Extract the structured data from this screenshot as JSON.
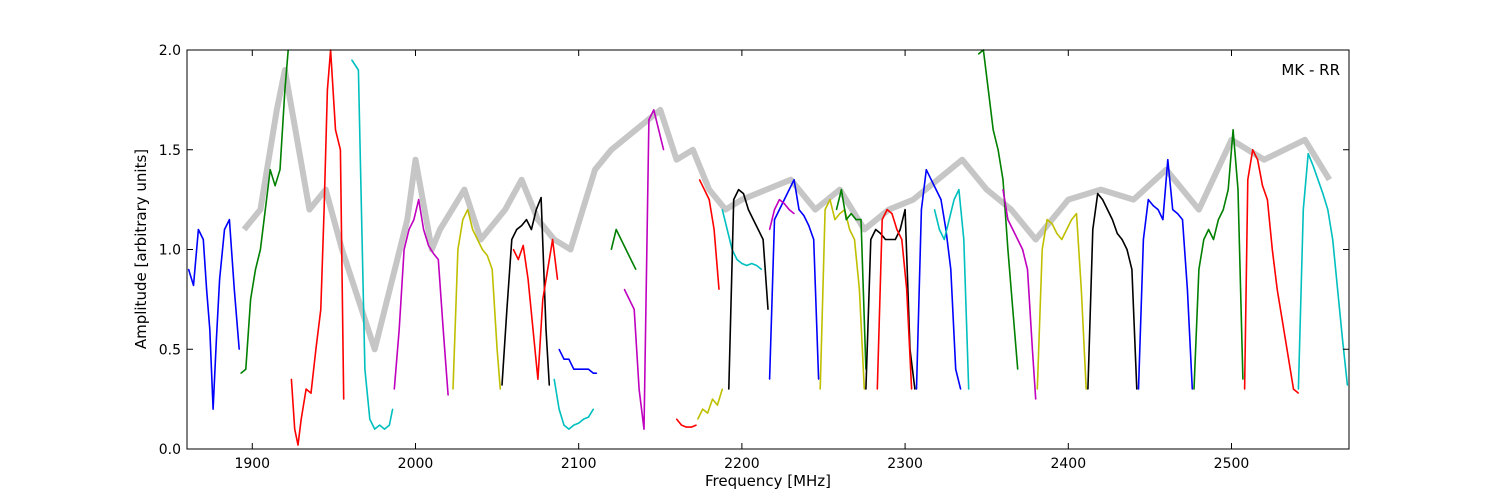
{
  "chart_data": {
    "type": "line",
    "xlabel": "Frequency [MHz]",
    "ylabel": "Amplitude [arbitrary units]",
    "annotation": "MK - RR",
    "xlim": [
      1860,
      2572
    ],
    "ylim": [
      0.0,
      2.0
    ],
    "xticks": [
      1900,
      2000,
      2100,
      2200,
      2300,
      2400,
      2500
    ],
    "yticks": [
      0.0,
      0.5,
      1.0,
      1.5,
      2.0
    ],
    "ytick_labels": [
      "0.0",
      "0.5",
      "1.0",
      "1.5",
      "2.0"
    ],
    "grid": false,
    "reference_color": "#c0c0c0",
    "series": [
      {
        "color": "#0000ff",
        "x": [
          1861,
          1864,
          1867,
          1870,
          1872,
          1874,
          1876,
          1878,
          1880,
          1883,
          1886,
          1889,
          1892
        ],
        "y": [
          0.9,
          0.82,
          1.1,
          1.05,
          0.8,
          0.6,
          0.2,
          0.55,
          0.85,
          1.1,
          1.15,
          0.8,
          0.5
        ]
      },
      {
        "color": "#008000",
        "x": [
          1893,
          1896,
          1899,
          1902,
          1905,
          1908,
          1911,
          1914,
          1917,
          1920,
          1922
        ],
        "y": [
          0.38,
          0.4,
          0.75,
          0.9,
          1.0,
          1.2,
          1.4,
          1.32,
          1.4,
          1.8,
          2.0
        ]
      },
      {
        "color": "#ff0000",
        "x": [
          1924,
          1926,
          1928,
          1930,
          1933,
          1936,
          1939,
          1942,
          1944,
          1946,
          1948,
          1951,
          1954,
          1956
        ],
        "y": [
          0.35,
          0.1,
          0.02,
          0.15,
          0.3,
          0.28,
          0.5,
          0.7,
          1.2,
          1.8,
          2.0,
          1.6,
          1.5,
          0.25
        ]
      },
      {
        "color": "#00bfbf",
        "x": [
          1961,
          1965,
          1969,
          1972,
          1975,
          1978,
          1981,
          1984,
          1986
        ],
        "y": [
          1.95,
          1.9,
          0.4,
          0.15,
          0.1,
          0.12,
          0.1,
          0.12,
          0.2
        ]
      },
      {
        "color": "#bf00bf",
        "x": [
          1987,
          1990,
          1993,
          1996,
          1999,
          2002,
          2005,
          2008,
          2011,
          2014,
          2017,
          2020
        ],
        "y": [
          0.3,
          0.6,
          1.0,
          1.1,
          1.15,
          1.25,
          1.1,
          1.02,
          0.98,
          0.95,
          0.6,
          0.27
        ]
      },
      {
        "color": "#bfbf00",
        "x": [
          2023,
          2026,
          2029,
          2032,
          2035,
          2038,
          2041,
          2044,
          2047,
          2050,
          2052
        ],
        "y": [
          0.3,
          1.0,
          1.15,
          1.2,
          1.1,
          1.05,
          1.0,
          0.97,
          0.9,
          0.5,
          0.3
        ]
      },
      {
        "color": "#000000",
        "x": [
          2053,
          2056,
          2059,
          2062,
          2065,
          2068,
          2071,
          2074,
          2077,
          2080,
          2082
        ],
        "y": [
          0.32,
          0.7,
          1.05,
          1.1,
          1.12,
          1.15,
          1.1,
          1.2,
          1.26,
          0.6,
          0.32
        ]
      },
      {
        "color": "#ff0000",
        "x": [
          2060,
          2063,
          2066,
          2069,
          2072,
          2075,
          2078,
          2081,
          2084,
          2087
        ],
        "y": [
          1.0,
          0.95,
          1.02,
          0.85,
          0.6,
          0.35,
          0.75,
          0.9,
          1.05,
          0.85
        ]
      },
      {
        "color": "#0000ff",
        "x": [
          2088,
          2091,
          2094,
          2097,
          2100,
          2103,
          2106,
          2109,
          2111
        ],
        "y": [
          0.5,
          0.45,
          0.45,
          0.4,
          0.4,
          0.4,
          0.4,
          0.38,
          0.38
        ]
      },
      {
        "color": "#00bfbf",
        "x": [
          2085,
          2088,
          2091,
          2094,
          2097,
          2100,
          2103,
          2106,
          2109
        ],
        "y": [
          0.35,
          0.2,
          0.12,
          0.1,
          0.12,
          0.13,
          0.15,
          0.16,
          0.2
        ]
      },
      {
        "color": "#008000",
        "x": [
          2120,
          2123,
          2126,
          2129,
          2132,
          2135
        ],
        "y": [
          1.0,
          1.1,
          1.05,
          1.0,
          0.95,
          0.9
        ]
      },
      {
        "color": "#bf00bf",
        "x": [
          2128,
          2131,
          2134,
          2137,
          2140,
          2143,
          2146,
          2149,
          2152
        ],
        "y": [
          0.8,
          0.75,
          0.7,
          0.3,
          0.1,
          1.65,
          1.7,
          1.6,
          1.5
        ]
      },
      {
        "color": "#ff0000",
        "x": [
          2160,
          2163,
          2166,
          2169,
          2172
        ],
        "y": [
          0.15,
          0.12,
          0.11,
          0.11,
          0.12
        ]
      },
      {
        "color": "#bfbf00",
        "x": [
          2173,
          2176,
          2179,
          2182,
          2185,
          2188
        ],
        "y": [
          0.15,
          0.2,
          0.18,
          0.25,
          0.22,
          0.3
        ]
      },
      {
        "color": "#ff0000",
        "x": [
          2174,
          2177,
          2180,
          2183,
          2186
        ],
        "y": [
          1.35,
          1.3,
          1.25,
          1.1,
          0.8
        ]
      },
      {
        "color": "#00bfbf",
        "x": [
          2188,
          2191,
          2194,
          2197,
          2200,
          2203,
          2206,
          2209,
          2212
        ],
        "y": [
          1.2,
          1.1,
          1.0,
          0.95,
          0.93,
          0.92,
          0.93,
          0.92,
          0.9
        ]
      },
      {
        "color": "#000000",
        "x": [
          2192,
          2195,
          2198,
          2201,
          2204,
          2207,
          2210,
          2213,
          2216
        ],
        "y": [
          0.3,
          1.25,
          1.3,
          1.28,
          1.2,
          1.15,
          1.1,
          1.05,
          0.7
        ]
      },
      {
        "color": "#0000ff",
        "x": [
          2217,
          2220,
          2223,
          2226,
          2229,
          2232,
          2235,
          2238,
          2241,
          2244,
          2247
        ],
        "y": [
          0.35,
          1.15,
          1.2,
          1.25,
          1.3,
          1.35,
          1.2,
          1.17,
          1.12,
          1.05,
          0.35
        ]
      },
      {
        "color": "#bf00bf",
        "x": [
          2217,
          2220,
          2223,
          2226,
          2229,
          2232
        ],
        "y": [
          1.1,
          1.2,
          1.25,
          1.23,
          1.2,
          1.18
        ]
      },
      {
        "color": "#bfbf00",
        "x": [
          2248,
          2251,
          2254,
          2257,
          2260,
          2263,
          2266,
          2269,
          2272,
          2275
        ],
        "y": [
          0.3,
          1.2,
          1.25,
          1.15,
          1.18,
          1.2,
          1.1,
          1.05,
          0.8,
          0.3
        ]
      },
      {
        "color": "#008000",
        "x": [
          2258,
          2261,
          2264,
          2267,
          2270,
          2273,
          2276
        ],
        "y": [
          1.2,
          1.3,
          1.15,
          1.18,
          1.15,
          1.15,
          0.4
        ]
      },
      {
        "color": "#000000",
        "x": [
          2276,
          2279,
          2282,
          2285,
          2288,
          2291,
          2294,
          2297,
          2300,
          2303,
          2306
        ],
        "y": [
          0.3,
          1.05,
          1.1,
          1.08,
          1.05,
          1.05,
          1.05,
          1.1,
          1.2,
          0.5,
          0.3
        ]
      },
      {
        "color": "#ff0000",
        "x": [
          2283,
          2286,
          2289,
          2292,
          2295,
          2298,
          2301,
          2304
        ],
        "y": [
          0.3,
          1.15,
          1.2,
          1.18,
          1.1,
          1.05,
          0.8,
          0.3
        ]
      },
      {
        "color": "#0000ff",
        "x": [
          2307,
          2310,
          2313,
          2316,
          2319,
          2322,
          2325,
          2328,
          2331,
          2334
        ],
        "y": [
          0.3,
          1.2,
          1.4,
          1.35,
          1.3,
          1.25,
          1.1,
          0.9,
          0.4,
          0.3
        ]
      },
      {
        "color": "#00bfbf",
        "x": [
          2318,
          2321,
          2324,
          2327,
          2330,
          2333,
          2336,
          2339
        ],
        "y": [
          1.2,
          1.1,
          1.05,
          1.15,
          1.25,
          1.3,
          1.05,
          0.3
        ]
      },
      {
        "color": "#008000",
        "x": [
          2345,
          2348,
          2351,
          2354,
          2357,
          2360,
          2363,
          2366,
          2369
        ],
        "y": [
          1.98,
          2.0,
          1.8,
          1.6,
          1.5,
          1.35,
          1.0,
          0.7,
          0.4
        ]
      },
      {
        "color": "#bf00bf",
        "x": [
          2360,
          2363,
          2366,
          2369,
          2372,
          2375,
          2378,
          2380
        ],
        "y": [
          1.3,
          1.15,
          1.1,
          1.05,
          1.0,
          0.9,
          0.5,
          0.25
        ]
      },
      {
        "color": "#bfbf00",
        "x": [
          2381,
          2384,
          2387,
          2390,
          2393,
          2396,
          2399,
          2402,
          2405,
          2408,
          2411
        ],
        "y": [
          0.3,
          1.0,
          1.15,
          1.13,
          1.08,
          1.05,
          1.1,
          1.15,
          1.18,
          0.8,
          0.3
        ]
      },
      {
        "color": "#000000",
        "x": [
          2412,
          2415,
          2418,
          2421,
          2424,
          2427,
          2430,
          2433,
          2436,
          2439,
          2442
        ],
        "y": [
          0.3,
          1.1,
          1.28,
          1.25,
          1.2,
          1.15,
          1.08,
          1.05,
          1.0,
          0.9,
          0.3
        ]
      },
      {
        "color": "#0000ff",
        "x": [
          2443,
          2446,
          2449,
          2452,
          2455,
          2458,
          2461,
          2464,
          2467,
          2470,
          2473,
          2476
        ],
        "y": [
          0.3,
          1.05,
          1.25,
          1.22,
          1.2,
          1.15,
          1.45,
          1.2,
          1.18,
          1.15,
          0.8,
          0.3
        ]
      },
      {
        "color": "#008000",
        "x": [
          2477,
          2480,
          2483,
          2486,
          2489,
          2492,
          2495,
          2498,
          2501,
          2504,
          2507
        ],
        "y": [
          0.3,
          0.9,
          1.05,
          1.1,
          1.05,
          1.15,
          1.2,
          1.3,
          1.6,
          1.3,
          0.35
        ]
      },
      {
        "color": "#ff0000",
        "x": [
          2508,
          2510,
          2513,
          2516,
          2519,
          2522,
          2525,
          2528,
          2531,
          2534,
          2538,
          2541
        ],
        "y": [
          0.3,
          1.35,
          1.5,
          1.45,
          1.32,
          1.25,
          1.0,
          0.8,
          0.65,
          0.5,
          0.3,
          0.28
        ]
      },
      {
        "color": "#00bfbf",
        "x": [
          2541,
          2544,
          2547,
          2550,
          2553,
          2556,
          2559,
          2562,
          2565,
          2568,
          2571
        ],
        "y": [
          0.3,
          1.2,
          1.48,
          1.42,
          1.35,
          1.28,
          1.2,
          1.05,
          0.8,
          0.55,
          0.32
        ]
      }
    ],
    "reference_band": {
      "x": [
        1895,
        1905,
        1915,
        1920,
        1935,
        1945,
        1955,
        1975,
        1995,
        2000,
        2010,
        2015,
        2030,
        2040,
        2055,
        2065,
        2075,
        2085,
        2095,
        2110,
        2120,
        2135,
        2150,
        2160,
        2170,
        2180,
        2190,
        2200,
        2215,
        2230,
        2245,
        2260,
        2275,
        2290,
        2305,
        2320,
        2335,
        2350,
        2365,
        2380,
        2400,
        2420,
        2440,
        2460,
        2480,
        2500,
        2520,
        2545,
        2560
      ],
      "y": [
        1.1,
        1.2,
        1.7,
        1.9,
        1.2,
        1.3,
        1.0,
        0.5,
        1.15,
        1.45,
        1.0,
        1.1,
        1.3,
        1.05,
        1.2,
        1.35,
        1.15,
        1.05,
        1.0,
        1.4,
        1.5,
        1.6,
        1.7,
        1.45,
        1.5,
        1.3,
        1.2,
        1.25,
        1.3,
        1.35,
        1.2,
        1.3,
        1.1,
        1.2,
        1.25,
        1.35,
        1.45,
        1.3,
        1.2,
        1.05,
        1.25,
        1.3,
        1.25,
        1.4,
        1.2,
        1.55,
        1.45,
        1.55,
        1.35
      ]
    }
  }
}
